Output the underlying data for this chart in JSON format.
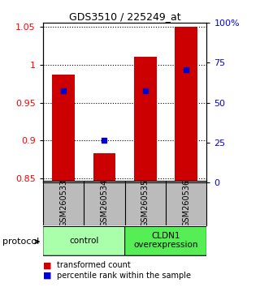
{
  "title": "GDS3510 / 225249_at",
  "samples": [
    "GSM260533",
    "GSM260534",
    "GSM260535",
    "GSM260536"
  ],
  "bar_values": [
    0.987,
    0.883,
    1.01,
    1.05
  ],
  "bar_bottom": 0.845,
  "percentile_values": [
    0.966,
    0.9,
    0.966,
    0.993
  ],
  "bar_color": "#cc0000",
  "dot_color": "#0000cc",
  "ylim": [
    0.845,
    1.055
  ],
  "yticks_left": [
    0.85,
    0.9,
    0.95,
    1.0,
    1.05
  ],
  "yticks_right": [
    0,
    25,
    50,
    75,
    100
  ],
  "ytick_labels_left": [
    "0.85",
    "0.9",
    "0.95",
    "1",
    "1.05"
  ],
  "ytick_labels_right": [
    "0",
    "25",
    "50",
    "75",
    "100%"
  ],
  "groups": [
    {
      "label": "control",
      "samples": [
        0,
        1
      ],
      "color": "#aaffaa"
    },
    {
      "label": "CLDN1\noverexpression",
      "samples": [
        2,
        3
      ],
      "color": "#55ee55"
    }
  ],
  "protocol_label": "protocol",
  "legend_items": [
    {
      "color": "#cc0000",
      "label": "transformed count"
    },
    {
      "color": "#0000cc",
      "label": "percentile rank within the sample"
    }
  ],
  "bar_width": 0.55,
  "background_color": "#ffffff",
  "label_area_color": "#bbbbbb"
}
